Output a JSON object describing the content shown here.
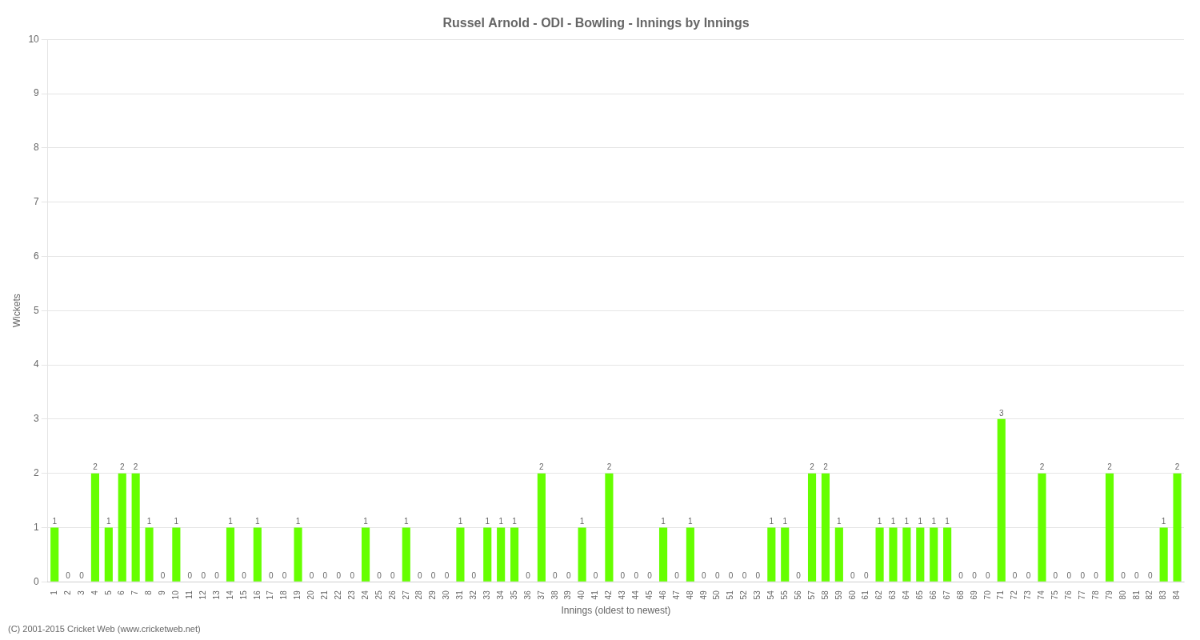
{
  "chart_data": {
    "type": "bar",
    "title": "Russel Arnold - ODI - Bowling - Innings by Innings",
    "xlabel": "Innings (oldest to newest)",
    "ylabel": "Wickets",
    "footer": "(C) 2001-2015 Cricket Web (www.cricketweb.net)",
    "categories": [
      "1",
      "2",
      "3",
      "4",
      "5",
      "6",
      "7",
      "8",
      "9",
      "10",
      "11",
      "12",
      "13",
      "14",
      "15",
      "16",
      "17",
      "18",
      "19",
      "20",
      "21",
      "22",
      "23",
      "24",
      "25",
      "26",
      "27",
      "28",
      "29",
      "30",
      "31",
      "32",
      "33",
      "34",
      "35",
      "36",
      "37",
      "38",
      "39",
      "40",
      "41",
      "42",
      "43",
      "44",
      "45",
      "46",
      "47",
      "48",
      "49",
      "50",
      "51",
      "52",
      "53",
      "54",
      "55",
      "56",
      "57",
      "58",
      "59",
      "60",
      "61",
      "62",
      "63",
      "64",
      "65",
      "66",
      "67",
      "68",
      "69",
      "70",
      "71",
      "72",
      "73",
      "74",
      "75",
      "76",
      "77",
      "78",
      "79",
      "80",
      "81",
      "82",
      "83",
      "84"
    ],
    "values": [
      1,
      0,
      0,
      2,
      1,
      2,
      2,
      1,
      0,
      1,
      0,
      0,
      0,
      1,
      0,
      1,
      0,
      0,
      1,
      0,
      0,
      0,
      0,
      1,
      0,
      0,
      1,
      0,
      0,
      0,
      1,
      0,
      1,
      1,
      1,
      0,
      2,
      0,
      0,
      1,
      0,
      2,
      0,
      0,
      0,
      1,
      0,
      1,
      0,
      0,
      0,
      0,
      0,
      1,
      1,
      0,
      2,
      2,
      1,
      0,
      0,
      1,
      1,
      1,
      1,
      1,
      1,
      0,
      0,
      0,
      3,
      0,
      0,
      2,
      0,
      0,
      0,
      0,
      2,
      0,
      0,
      0,
      1,
      2
    ],
    "color": "#66ff00",
    "ylim": [
      0,
      10
    ],
    "yticks": [
      0,
      1,
      2,
      3,
      4,
      5,
      6,
      7,
      8,
      9,
      10
    ],
    "grid": true,
    "data_labels": true
  }
}
